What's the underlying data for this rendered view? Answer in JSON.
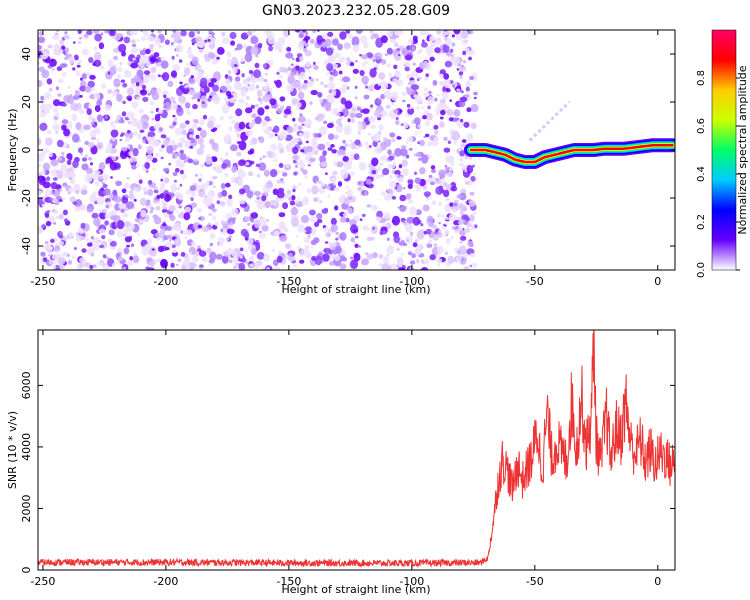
{
  "figure_title": "GN03.2023.232.05.28.G09",
  "chart_data": [
    {
      "type": "heatmap",
      "xlabel": "Height of straight line (km)",
      "ylabel": "Frequency (Hz)",
      "xlim": [
        -252,
        7
      ],
      "ylim": [
        -50,
        50
      ],
      "xticks": [
        -250,
        -200,
        -150,
        -100,
        -50,
        0
      ],
      "yticks": [
        -40,
        -20,
        0,
        20,
        40
      ],
      "noise_region_x": [
        -252,
        -74
      ],
      "signal_track": {
        "x": [
          -76,
          -70,
          -66,
          -62,
          -58,
          -54,
          -50,
          -46,
          -42,
          -38,
          -34,
          -30,
          -26,
          -22,
          -18,
          -14,
          -10,
          -6,
          -2,
          2,
          6
        ],
        "y": [
          0,
          0,
          -1,
          -2,
          -4,
          -5,
          -5,
          -3,
          -2,
          -1,
          0,
          0,
          0,
          0.5,
          0.5,
          0.5,
          1,
          1.5,
          2,
          2,
          2
        ]
      },
      "faint_streak": {
        "x": [
          -52,
          -36
        ],
        "y": [
          4,
          20
        ]
      },
      "colorbar": {
        "label": "Normalized spectral amplitude",
        "range": [
          0,
          1
        ],
        "ticks": [
          "0.0",
          "0.2",
          "0.4",
          "0.6",
          "0.8"
        ],
        "colors": [
          "#ffffff",
          "#6600ff",
          "#0000ff",
          "#00ccff",
          "#00ff66",
          "#ccff00",
          "#ffcc00",
          "#ff0000",
          "#ff0066"
        ]
      }
    },
    {
      "type": "line",
      "xlabel": "Height of straight line (km)",
      "ylabel": "SNR (10 * v/v)",
      "xlim": [
        -252,
        7
      ],
      "ylim": [
        0,
        7800
      ],
      "xticks": [
        -250,
        -200,
        -150,
        -100,
        -50,
        0
      ],
      "yticks": [
        0,
        2000,
        4000,
        6000
      ],
      "color": "#ee3333",
      "series": [
        {
          "x": [
            -252,
            -200,
            -150,
            -100,
            -72,
            -69,
            -67,
            -65,
            -63,
            -61,
            -59,
            -57,
            -55,
            -53,
            -51,
            -49,
            -47,
            -45,
            -43,
            -41,
            -39,
            -37,
            -35,
            -33,
            -31,
            -29,
            -27,
            -26,
            -25,
            -23,
            -21,
            -19,
            -17,
            -15,
            -13,
            -11,
            -9,
            -7,
            -5,
            -3,
            -1,
            1,
            3,
            5,
            7
          ],
          "y": [
            250,
            250,
            230,
            220,
            240,
            400,
            1500,
            2800,
            3600,
            3200,
            2600,
            3500,
            2900,
            3300,
            3700,
            4500,
            3200,
            5100,
            3600,
            4200,
            3800,
            3500,
            5500,
            3900,
            5600,
            4000,
            5000,
            7600,
            4200,
            3500,
            5100,
            3600,
            4600,
            4300,
            5500,
            4100,
            3800,
            4200,
            3500,
            3900,
            3400,
            3800,
            3700,
            3400,
            3500
          ]
        }
      ]
    }
  ]
}
